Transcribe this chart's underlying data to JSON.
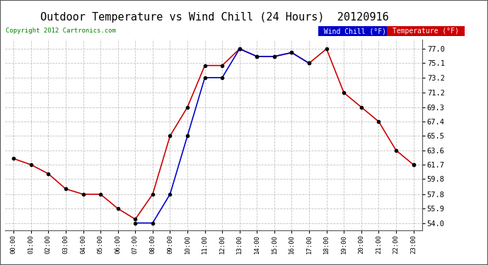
{
  "title": "Outdoor Temperature vs Wind Chill (24 Hours)  20120916",
  "copyright": "Copyright 2012 Cartronics.com",
  "hours": [
    "00:00",
    "01:00",
    "02:00",
    "03:00",
    "04:00",
    "05:00",
    "06:00",
    "07:00",
    "08:00",
    "09:00",
    "10:00",
    "11:00",
    "12:00",
    "13:00",
    "14:00",
    "15:00",
    "16:00",
    "17:00",
    "18:00",
    "19:00",
    "20:00",
    "21:00",
    "22:00",
    "23:00"
  ],
  "temperature": [
    62.5,
    61.7,
    60.5,
    58.5,
    57.8,
    57.8,
    55.9,
    54.5,
    57.8,
    65.5,
    69.3,
    74.8,
    74.8,
    77.0,
    76.0,
    76.0,
    76.5,
    75.1,
    77.0,
    71.2,
    69.3,
    67.4,
    63.6,
    61.7
  ],
  "wind_chill": [
    null,
    null,
    null,
    null,
    null,
    null,
    null,
    54.0,
    54.0,
    57.8,
    65.5,
    73.2,
    73.2,
    77.0,
    76.0,
    76.0,
    76.5,
    75.1,
    null,
    null,
    null,
    null,
    null,
    61.7
  ],
  "temp_color": "#cc0000",
  "wind_color": "#0000cc",
  "bg_color": "#ffffff",
  "plot_bg": "#ffffff",
  "grid_color": "#c0c0c0",
  "yticks": [
    54.0,
    55.9,
    57.8,
    59.8,
    61.7,
    63.6,
    65.5,
    67.4,
    69.3,
    71.2,
    73.2,
    75.1,
    77.0
  ],
  "ylim": [
    53.0,
    78.2
  ],
  "title_fontsize": 11,
  "marker_color": "#000000",
  "marker_size": 3,
  "legend_wind_bg": "#0000cc",
  "legend_temp_bg": "#cc0000",
  "legend_text_color": "#ffffff",
  "copyright_color": "#008000"
}
